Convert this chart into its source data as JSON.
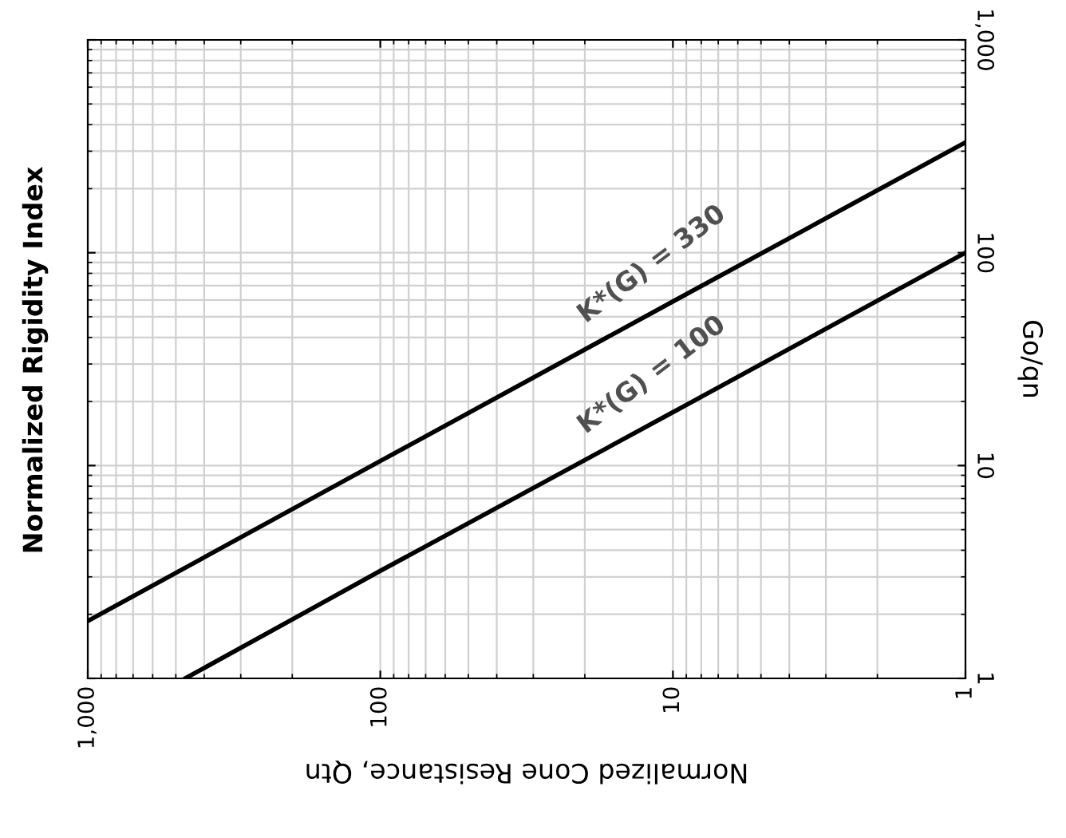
{
  "chart_data": {
    "type": "line",
    "title": "Normalized Rigidity Index",
    "xlabel": "Normalized Cone Resistance, Qtn",
    "ylabel": "Go/qn",
    "log": "xy",
    "grid": true,
    "marker": "none",
    "line_style": "solid",
    "legend": false,
    "xlim": [
      1000,
      1
    ],
    "ylim": [
      1,
      1000
    ],
    "xticks": [
      {
        "value": 1000,
        "label": "1,000"
      },
      100,
      10,
      1
    ],
    "yticks": [
      1,
      10,
      100,
      {
        "value": 1000,
        "label": "1,000"
      }
    ],
    "series": [
      {
        "color": "#000000",
        "x": [
          1000,
          100,
          10,
          1
        ],
        "values": [
          1.86,
          10.5,
          59,
          330
        ]
      },
      {
        "color": "#000000",
        "x": [
          464,
          100,
          10,
          1
        ],
        "values": [
          1,
          3.2,
          17.8,
          100
        ]
      }
    ],
    "annotations": [
      "K*(G) = 330",
      "K*(G) = 100"
    ]
  }
}
